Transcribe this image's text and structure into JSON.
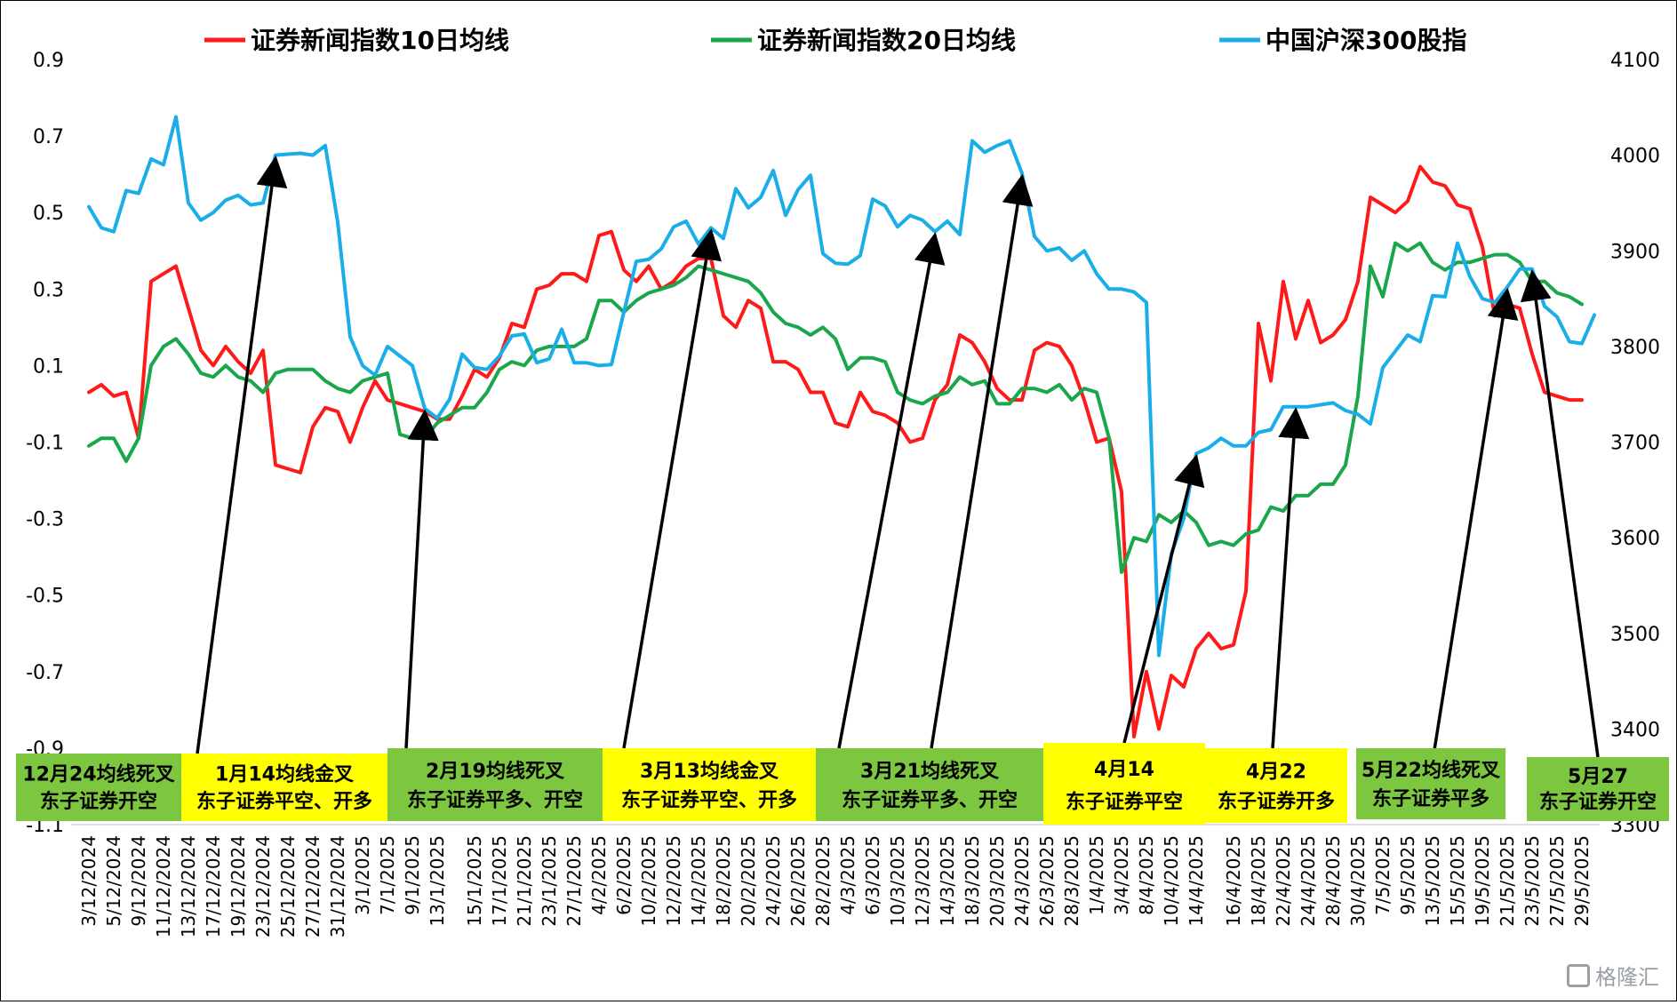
{
  "chart_data": {
    "type": "line",
    "legend": [
      {
        "name": "证券新闻指数10日均线",
        "color": "#ff1a1a"
      },
      {
        "name": "证券新闻指数20日均线",
        "color": "#1aa64a"
      },
      {
        "name": "中国沪深300股指",
        "color": "#1aaee8"
      }
    ],
    "y_left": {
      "min": -1.1,
      "max": 0.9,
      "ticks": [
        "0.9",
        "0.7",
        "0.5",
        "0.3",
        "0.1",
        "-0.1",
        "-0.3",
        "-0.5",
        "-0.7",
        "-0.9",
        "-1.1"
      ]
    },
    "y_right": {
      "min": 3300,
      "max": 4100,
      "ticks": [
        "4100",
        "4000",
        "3900",
        "3800",
        "3700",
        "3600",
        "3500",
        "3400",
        "3300"
      ]
    },
    "x_labels": [
      "3/12/2024",
      "5/12/2024",
      "9/12/2024",
      "11/12/2024",
      "13/12/2024",
      "17/12/2024",
      "19/12/2024",
      "23/12/2024",
      "25/12/2024",
      "27/12/2024",
      "31/12/2024",
      "3/1/2025",
      "7/1/2025",
      "9/1/2025",
      "13/1/2025",
      "15/1/2025",
      "17/1/2025",
      "21/1/2025",
      "23/1/2025",
      "27/1/2025",
      "4/2/2025",
      "6/2/2025",
      "10/2/2025",
      "12/2/2025",
      "14/2/2025",
      "18/2/2025",
      "20/2/2025",
      "24/2/2025",
      "26/2/2025",
      "28/2/2025",
      "4/3/2025",
      "6/3/2025",
      "10/3/2025",
      "12/3/2025",
      "14/3/2025",
      "18/3/2025",
      "20/3/2025",
      "24/3/2025",
      "26/3/2025",
      "28/3/2025",
      "1/4/2025",
      "3/4/2025",
      "8/4/2025",
      "10/4/2025",
      "14/4/2025",
      "16/4/2025",
      "18/4/2025",
      "22/4/2025",
      "24/4/2025",
      "28/4/2025",
      "30/4/2025",
      "7/5/2025",
      "9/5/2025",
      "13/5/2025",
      "15/5/2025",
      "19/5/2025",
      "21/5/2025",
      "23/5/2025",
      "27/5/2025",
      "29/5/2025"
    ],
    "series": [
      {
        "name": "证券新闻指数10日均线",
        "axis": "left",
        "color": "#ff1a1a",
        "values": [
          0.03,
          0.05,
          0.02,
          0.03,
          -0.09,
          0.32,
          0.34,
          0.36,
          0.25,
          0.14,
          0.1,
          0.15,
          0.11,
          0.08,
          0.14,
          -0.16,
          -0.17,
          -0.18,
          -0.06,
          -0.01,
          -0.02,
          -0.1,
          -0.01,
          0.06,
          0.01,
          0.0,
          -0.01,
          -0.02,
          -0.04,
          -0.04,
          0.02,
          0.09,
          0.07,
          0.12,
          0.21,
          0.2,
          0.3,
          0.31,
          0.34,
          0.34,
          0.32,
          0.44,
          0.45,
          0.35,
          0.32,
          0.36,
          0.3,
          0.32,
          0.36,
          0.38,
          0.38,
          0.23,
          0.2,
          0.27,
          0.25,
          0.11,
          0.11,
          0.09,
          0.03,
          0.03,
          -0.05,
          -0.06,
          0.03,
          -0.02,
          -0.03,
          -0.05,
          -0.1,
          -0.09,
          0.01,
          0.05,
          0.18,
          0.16,
          0.11,
          0.04,
          0.01,
          0.01,
          0.14,
          0.16,
          0.15,
          0.1,
          0.01,
          -0.1,
          -0.09,
          -0.23,
          -0.87,
          -0.7,
          -0.85,
          -0.71,
          -0.74,
          -0.64,
          -0.6,
          -0.64,
          -0.63,
          -0.49,
          0.21,
          0.06,
          0.32,
          0.17,
          0.27,
          0.16,
          0.18,
          0.22,
          0.32,
          0.54,
          0.52,
          0.5,
          0.53,
          0.62,
          0.58,
          0.57,
          0.52,
          0.51,
          0.41,
          0.23,
          0.26,
          0.25,
          0.13,
          0.03,
          0.02,
          0.01,
          0.01
        ]
      },
      {
        "name": "证券新闻指数20日均线",
        "axis": "left",
        "color": "#1aa64a",
        "values": [
          -0.11,
          -0.09,
          -0.09,
          -0.15,
          -0.09,
          0.1,
          0.15,
          0.17,
          0.13,
          0.08,
          0.07,
          0.1,
          0.07,
          0.06,
          0.03,
          0.08,
          0.09,
          0.09,
          0.09,
          0.06,
          0.04,
          0.03,
          0.06,
          0.07,
          0.08,
          -0.08,
          -0.09,
          -0.09,
          -0.05,
          -0.03,
          -0.01,
          -0.01,
          0.03,
          0.09,
          0.11,
          0.1,
          0.14,
          0.15,
          0.15,
          0.15,
          0.17,
          0.27,
          0.27,
          0.24,
          0.27,
          0.29,
          0.3,
          0.31,
          0.33,
          0.36,
          0.35,
          0.34,
          0.33,
          0.32,
          0.29,
          0.24,
          0.21,
          0.2,
          0.18,
          0.2,
          0.17,
          0.09,
          0.12,
          0.12,
          0.11,
          0.03,
          0.01,
          0.0,
          0.02,
          0.03,
          0.07,
          0.05,
          0.06,
          0.0,
          0.0,
          0.04,
          0.04,
          0.03,
          0.05,
          0.01,
          0.04,
          0.03,
          -0.09,
          -0.44,
          -0.35,
          -0.36,
          -0.29,
          -0.31,
          -0.28,
          -0.31,
          -0.37,
          -0.36,
          -0.37,
          -0.34,
          -0.33,
          -0.27,
          -0.28,
          -0.24,
          -0.24,
          -0.21,
          -0.21,
          -0.16,
          0.02,
          0.36,
          0.28,
          0.42,
          0.4,
          0.42,
          0.37,
          0.35,
          0.37,
          0.37,
          0.38,
          0.39,
          0.39,
          0.37,
          0.32,
          0.32,
          0.29,
          0.28,
          0.26
        ]
      },
      {
        "name": "中国沪深300股指",
        "axis": "right",
        "color": "#1aaee8",
        "values": [
          3946,
          3924,
          3920,
          3963,
          3960,
          3996,
          3990,
          4040,
          3950,
          3932,
          3940,
          3953,
          3958,
          3948,
          3950,
          4000,
          4001,
          4002,
          4000,
          4010,
          3930,
          3810,
          3780,
          3770,
          3800,
          3790,
          3780,
          3735,
          3725,
          3745,
          3792,
          3778,
          3776,
          3790,
          3811,
          3813,
          3783,
          3787,
          3818,
          3783,
          3783,
          3780,
          3781,
          3836,
          3889,
          3891,
          3902,
          3925,
          3931,
          3907,
          3924,
          3913,
          3965,
          3945,
          3956,
          3984,
          3937,
          3964,
          3979,
          3897,
          3887,
          3886,
          3895,
          3954,
          3947,
          3925,
          3937,
          3932,
          3920,
          3931,
          3917,
          4015,
          4003,
          4010,
          4015,
          3981,
          3915,
          3900,
          3903,
          3890,
          3900,
          3876,
          3860,
          3860,
          3857,
          3846,
          3477,
          3583,
          3620,
          3688,
          3694,
          3704,
          3696,
          3696,
          3710,
          3713,
          3737,
          3737,
          3737,
          3739,
          3741,
          3733,
          3729,
          3719,
          3778,
          3795,
          3812,
          3805,
          3853,
          3852,
          3908,
          3873,
          3850,
          3846,
          3862,
          3881,
          3881,
          3842,
          3831,
          3805,
          3803,
          3833
        ]
      }
    ],
    "annotations": [
      {
        "line1": "12月24均线死叉",
        "line2": "东子证券开空",
        "bg": "#7dc63f"
      },
      {
        "line1": "1月14均线金叉",
        "line2": "东子证券平空、开多",
        "bg": "#ffff00"
      },
      {
        "line1": "2月19均线死叉",
        "line2": "东子证券平多、开空",
        "bg": "#7dc63f"
      },
      {
        "line1": "3月13均线金叉",
        "line2": "东子证券平空、开多",
        "bg": "#ffff00"
      },
      {
        "line1": "3月21均线死叉",
        "line2": "东子证券平多、开空",
        "bg": "#7dc63f"
      },
      {
        "line1": "4月14",
        "line2": "东子证券平空",
        "bg": "#ffff00"
      },
      {
        "line1": "4月22",
        "line2": "东子证券开多",
        "bg": "#ffff00"
      },
      {
        "line1": "5月22均线死叉",
        "line2": "东子证券平多",
        "bg": "#7dc63f"
      },
      {
        "line1": "5月27",
        "line2": "东子证券开空",
        "bg": "#7dc63f"
      }
    ],
    "arrows": [
      {
        "target_series": "中国沪深300股指",
        "target_index": 15
      },
      {
        "target_series": "中国沪深300股指",
        "target_index": 27
      },
      {
        "target_series": "中国沪深300股指",
        "target_index": 50
      },
      {
        "target_series": "中国沪深300股指",
        "target_index": 68
      },
      {
        "target_series": "中国沪深300股指",
        "target_index": 75
      },
      {
        "target_series": "中国沪深300股指",
        "target_index": 89
      },
      {
        "target_series": "中国沪深300股指",
        "target_index": 97
      },
      {
        "target_series": "中国沪深300股指",
        "target_index": 114
      },
      {
        "target_series": "中国沪深300股指",
        "target_index": 116
      }
    ],
    "grid": false,
    "legend_placement": "top"
  },
  "watermark": "格隆汇"
}
